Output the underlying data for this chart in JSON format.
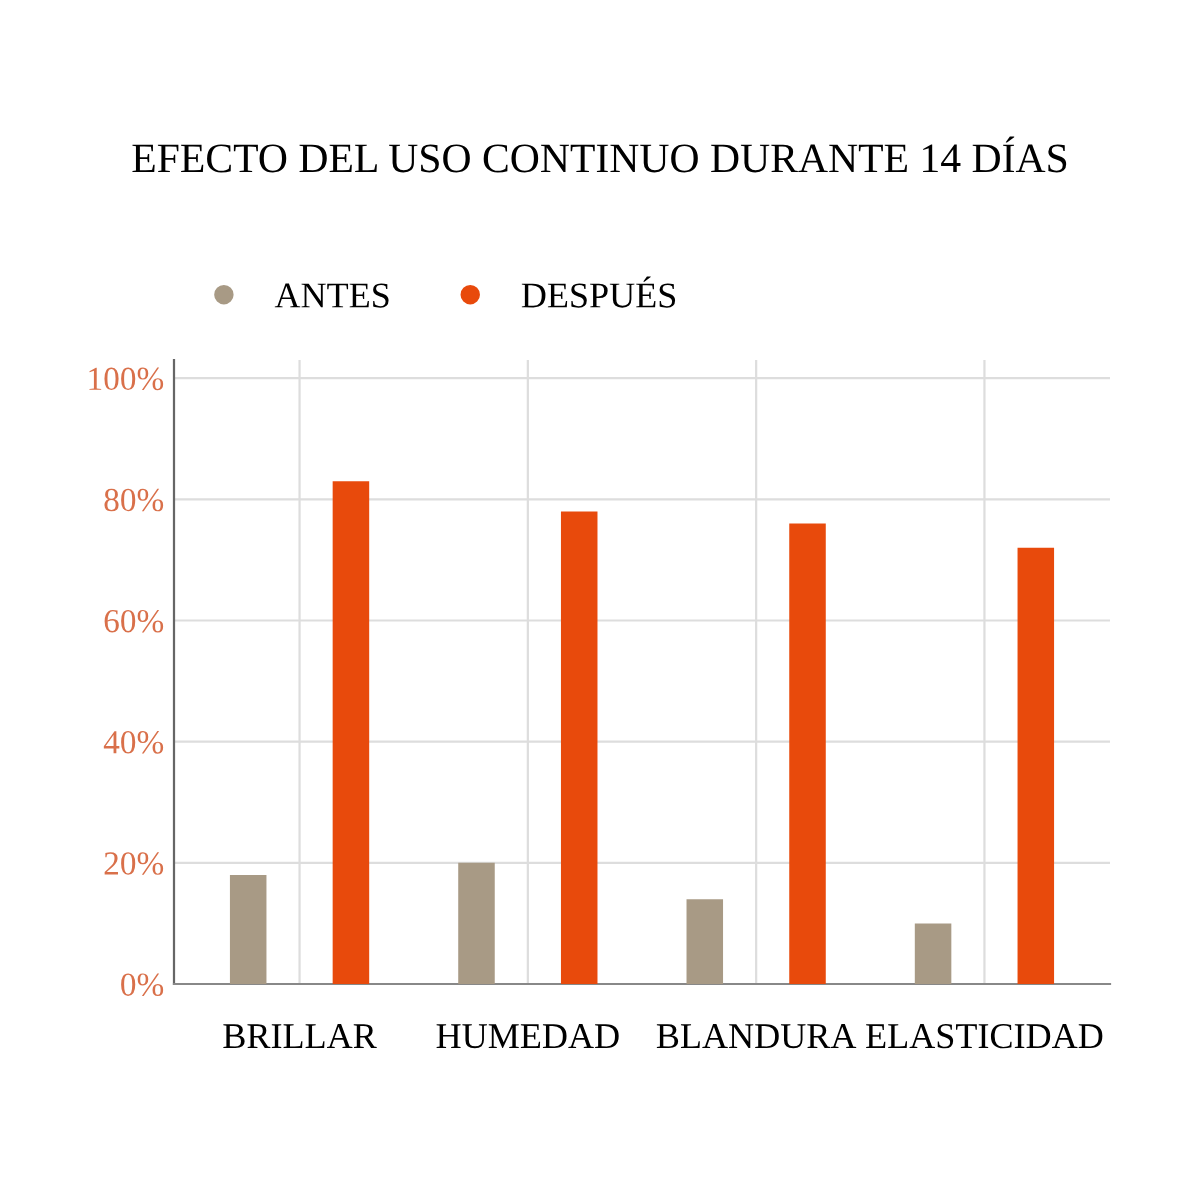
{
  "chart_data": {
    "type": "bar",
    "title": "EFECTO DEL USO CONTINUO DURANTE 14 DÍAS",
    "categories": [
      "BRILLAR",
      "HUMEDAD",
      "BLANDURA",
      "ELASTICIDAD"
    ],
    "series": [
      {
        "name": "ANTES",
        "color": "#a89a85",
        "values": [
          18,
          20,
          14,
          10
        ]
      },
      {
        "name": "DESPUÉS",
        "color": "#e84a0c",
        "values": [
          83,
          78,
          76,
          72
        ]
      }
    ],
    "ylim": [
      0,
      103
    ],
    "yticks": [
      {
        "value": 0,
        "label": "0%"
      },
      {
        "value": 20,
        "label": "20%"
      },
      {
        "value": 40,
        "label": "40%"
      },
      {
        "value": 60,
        "label": "60%"
      },
      {
        "value": 80,
        "label": "80%"
      },
      {
        "value": 100,
        "label": "100%"
      }
    ],
    "grid": true,
    "legend": "top left"
  }
}
